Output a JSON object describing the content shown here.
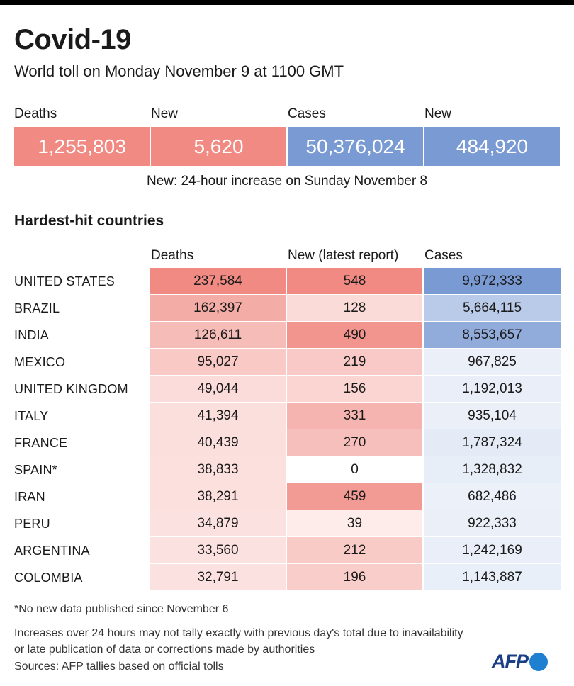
{
  "header": {
    "title": "Covid-19",
    "subtitle": "World toll on Monday November 9  at 1100 GMT"
  },
  "summary": {
    "deaths_label": "Deaths",
    "deaths_value": "1,255,803",
    "new_deaths_label": "New",
    "new_deaths_value": "5,620",
    "cases_label": "Cases",
    "cases_value": "50,376,024",
    "new_cases_label": "New",
    "new_cases_value": "484,920",
    "note": "New: 24-hour increase on Sunday November 8"
  },
  "colors": {
    "deaths_accent": "#f08a82",
    "cases_accent": "#7a9ad4",
    "red_scale_base": "#f08a82",
    "blue_scale_base": "#7a9ad4"
  },
  "table": {
    "section_title": "Hardest-hit countries",
    "col_deaths": "Deaths",
    "col_new": "New (latest report)",
    "col_cases": "Cases"
  },
  "chart_data": {
    "type": "table",
    "title": "Hardest-hit countries",
    "columns": [
      "Deaths",
      "New (latest report)",
      "Cases"
    ],
    "rows": [
      {
        "country": "UNITED STATES",
        "deaths": "237,584",
        "new": "548",
        "cases": "9,972,333",
        "deaths_n": 237584,
        "new_n": 548,
        "cases_n": 9972333
      },
      {
        "country": "BRAZIL",
        "deaths": "162,397",
        "new": "128",
        "cases": "5,664,115",
        "deaths_n": 162397,
        "new_n": 128,
        "cases_n": 5664115
      },
      {
        "country": "INDIA",
        "deaths": "126,611",
        "new": "490",
        "cases": "8,553,657",
        "deaths_n": 126611,
        "new_n": 490,
        "cases_n": 8553657
      },
      {
        "country": "MEXICO",
        "deaths": "95,027",
        "new": "219",
        "cases": "967,825",
        "deaths_n": 95027,
        "new_n": 219,
        "cases_n": 967825
      },
      {
        "country": "UNITED KINGDOM",
        "deaths": "49,044",
        "new": "156",
        "cases": "1,192,013",
        "deaths_n": 49044,
        "new_n": 156,
        "cases_n": 1192013
      },
      {
        "country": "ITALY",
        "deaths": "41,394",
        "new": "331",
        "cases": "935,104",
        "deaths_n": 41394,
        "new_n": 331,
        "cases_n": 935104
      },
      {
        "country": "FRANCE",
        "deaths": "40,439",
        "new": "270",
        "cases": "1,787,324",
        "deaths_n": 40439,
        "new_n": 270,
        "cases_n": 1787324
      },
      {
        "country": "SPAIN*",
        "deaths": "38,833",
        "new": "0",
        "cases": "1,328,832",
        "deaths_n": 38833,
        "new_n": 0,
        "cases_n": 1328832
      },
      {
        "country": "IRAN",
        "deaths": "38,291",
        "new": "459",
        "cases": "682,486",
        "deaths_n": 38291,
        "new_n": 459,
        "cases_n": 682486
      },
      {
        "country": "PERU",
        "deaths": "34,879",
        "new": "39",
        "cases": "922,333",
        "deaths_n": 34879,
        "new_n": 39,
        "cases_n": 922333
      },
      {
        "country": "ARGENTINA",
        "deaths": "33,560",
        "new": "212",
        "cases": "1,242,169",
        "deaths_n": 33560,
        "new_n": 212,
        "cases_n": 1242169
      },
      {
        "country": "COLOMBIA",
        "deaths": "32,791",
        "new": "196",
        "cases": "1,143,887",
        "deaths_n": 32791,
        "new_n": 196,
        "cases_n": 1143887
      }
    ]
  },
  "footer": {
    "asterisk_note": "*No new  data published since November 6",
    "disclaimer_line1": "Increases over 24 hours may not tally exactly with previous day's total due to inavailability",
    "disclaimer_line2": "or late publication of data or corrections made by authorities",
    "sources": "Sources: AFP tallies based on official tolls",
    "logo_text": "AFP"
  }
}
